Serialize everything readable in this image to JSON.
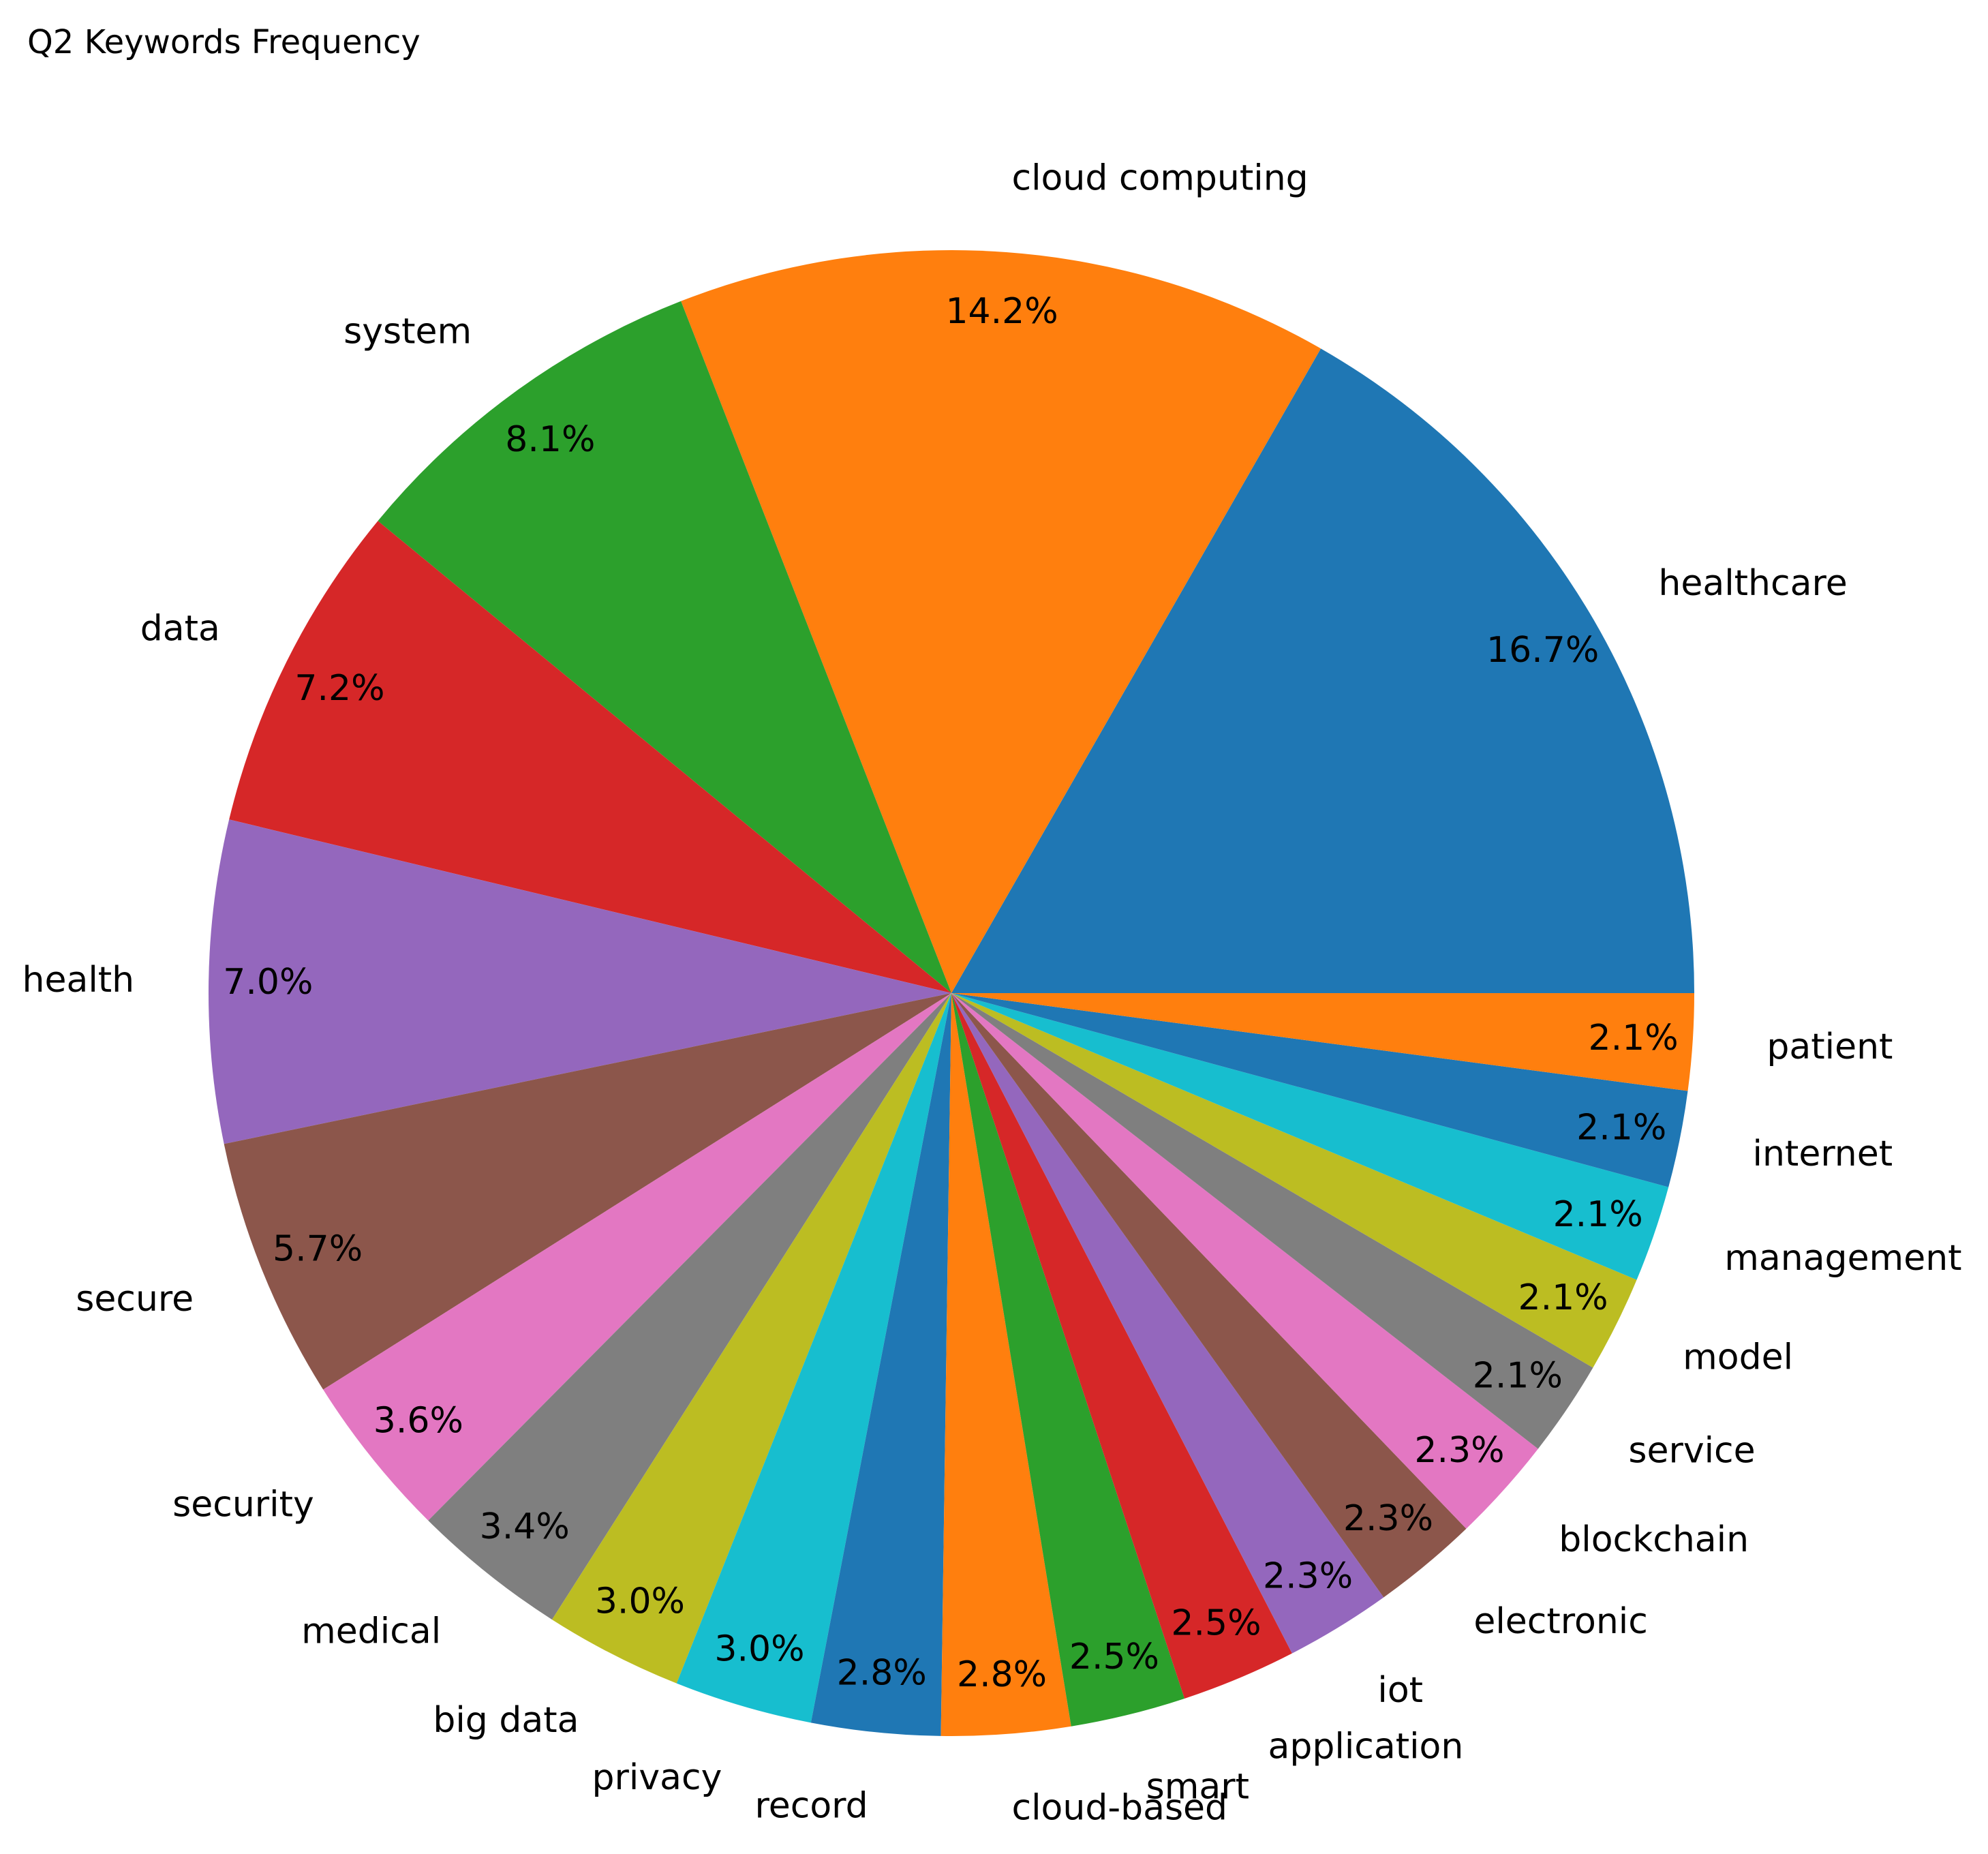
{
  "chart_data": {
    "type": "pie",
    "title": "Q2 Keywords Frequency",
    "start_angle_deg": 0,
    "direction": "counterclockwise",
    "value_format": "percent_1_decimal",
    "slices": [
      {
        "label": "healthcare",
        "value": 16.7,
        "pct_text": "16.7%",
        "color": "#1f77b4"
      },
      {
        "label": "cloud computing",
        "value": 14.2,
        "pct_text": "14.2%",
        "color": "#ff7f0e"
      },
      {
        "label": "system",
        "value": 8.1,
        "pct_text": "8.1%",
        "color": "#2ca02c"
      },
      {
        "label": "data",
        "value": 7.2,
        "pct_text": "7.2%",
        "color": "#d62728"
      },
      {
        "label": "health",
        "value": 7.0,
        "pct_text": "7.0%",
        "color": "#9467bd"
      },
      {
        "label": "secure",
        "value": 5.7,
        "pct_text": "5.7%",
        "color": "#8c564b"
      },
      {
        "label": "security",
        "value": 3.6,
        "pct_text": "3.6%",
        "color": "#e377c2"
      },
      {
        "label": "medical",
        "value": 3.4,
        "pct_text": "3.4%",
        "color": "#7f7f7f"
      },
      {
        "label": "big data",
        "value": 3.0,
        "pct_text": "3.0%",
        "color": "#bcbd22"
      },
      {
        "label": "privacy",
        "value": 3.0,
        "pct_text": "3.0%",
        "color": "#17becf"
      },
      {
        "label": "record",
        "value": 2.8,
        "pct_text": "2.8%",
        "color": "#1f77b4"
      },
      {
        "label": "cloud-based",
        "value": 2.8,
        "pct_text": "2.8%",
        "color": "#ff7f0e"
      },
      {
        "label": "smart",
        "value": 2.5,
        "pct_text": "2.5%",
        "color": "#2ca02c"
      },
      {
        "label": "application",
        "value": 2.5,
        "pct_text": "2.5%",
        "color": "#d62728"
      },
      {
        "label": "iot",
        "value": 2.3,
        "pct_text": "2.3%",
        "color": "#9467bd"
      },
      {
        "label": "electronic",
        "value": 2.3,
        "pct_text": "2.3%",
        "color": "#8c564b"
      },
      {
        "label": "blockchain",
        "value": 2.3,
        "pct_text": "2.3%",
        "color": "#e377c2"
      },
      {
        "label": "service",
        "value": 2.1,
        "pct_text": "2.1%",
        "color": "#7f7f7f"
      },
      {
        "label": "model",
        "value": 2.1,
        "pct_text": "2.1%",
        "color": "#bcbd22"
      },
      {
        "label": "management",
        "value": 2.1,
        "pct_text": "2.1%",
        "color": "#17becf"
      },
      {
        "label": "internet",
        "value": 2.1,
        "pct_text": "2.1%",
        "color": "#1f77b4"
      },
      {
        "label": "patient",
        "value": 2.1,
        "pct_text": "2.1%",
        "color": "#ff7f0e"
      }
    ]
  }
}
